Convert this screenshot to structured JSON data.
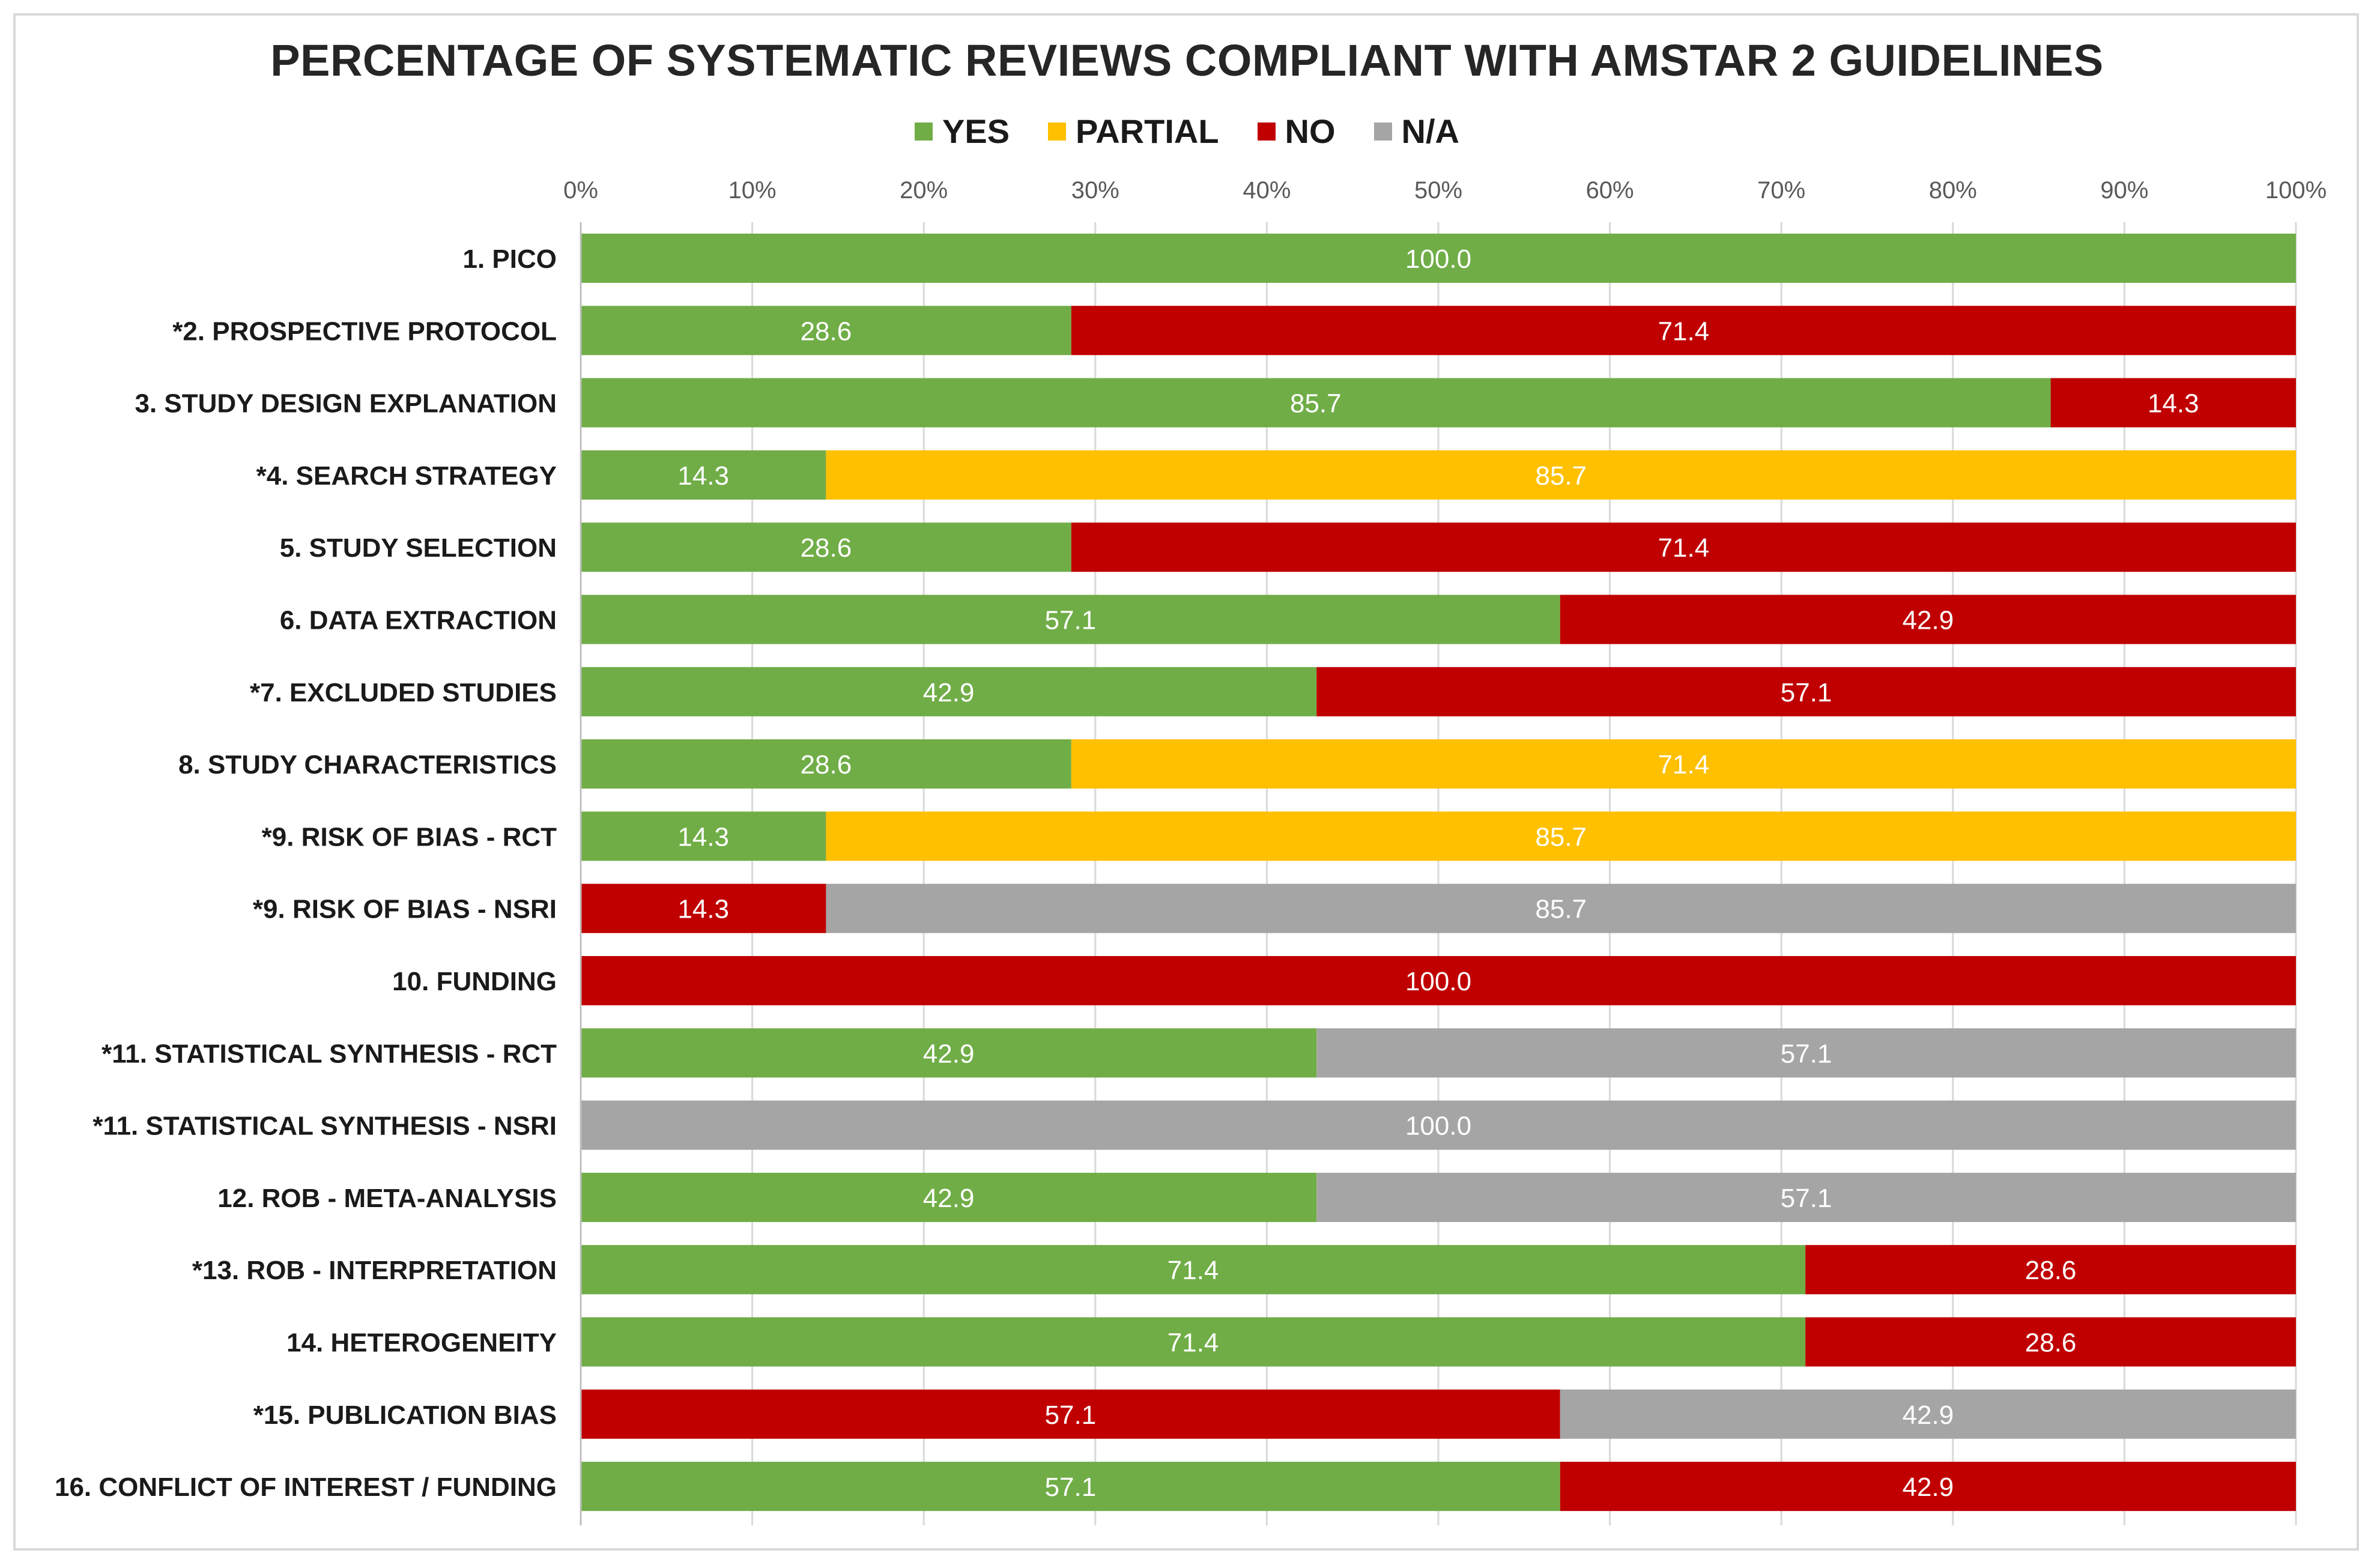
{
  "chart_data": {
    "type": "bar",
    "orientation": "horizontal",
    "stacked": true,
    "percent_stacked": true,
    "title": "PERCENTAGE OF SYSTEMATIC REVIEWS COMPLIANT WITH AMSTAR 2 GUIDELINES",
    "legend_position": "top",
    "xlim": [
      0,
      100
    ],
    "x_ticks": [
      "0%",
      "10%",
      "20%",
      "30%",
      "40%",
      "50%",
      "60%",
      "70%",
      "80%",
      "90%",
      "100%"
    ],
    "categories": [
      "1. PICO",
      "*2. PROSPECTIVE PROTOCOL",
      "3. STUDY DESIGN EXPLANATION",
      "*4. SEARCH STRATEGY",
      "5. STUDY SELECTION",
      "6. DATA EXTRACTION",
      "*7. EXCLUDED STUDIES",
      "8. STUDY CHARACTERISTICS",
      "*9. RISK OF BIAS - RCT",
      "*9. RISK OF BIAS - NSRI",
      "10. FUNDING",
      "*11. STATISTICAL SYNTHESIS  - RCT",
      "*11. STATISTICAL SYNTHESIS - NSRI",
      "12. ROB - META-ANALYSIS",
      "*13. ROB - INTERPRETATION",
      "14. HETEROGENEITY",
      "*15. PUBLICATION BIAS",
      "16. CONFLICT OF INTEREST / FUNDING"
    ],
    "series": [
      {
        "name": "YES",
        "color": "#70ad47",
        "values": [
          100.0,
          28.6,
          85.7,
          14.3,
          28.6,
          57.1,
          42.9,
          28.6,
          14.3,
          0,
          0,
          42.9,
          0,
          42.9,
          71.4,
          71.4,
          0,
          57.1
        ]
      },
      {
        "name": "PARTIAL",
        "color": "#ffc000",
        "values": [
          0,
          0,
          0,
          85.7,
          0,
          0,
          0,
          71.4,
          85.7,
          0,
          0,
          0,
          0,
          0,
          0,
          0,
          0,
          0
        ]
      },
      {
        "name": "NO",
        "color": "#c00000",
        "values": [
          0,
          71.4,
          14.3,
          0,
          71.4,
          42.9,
          57.1,
          0,
          0,
          14.3,
          100.0,
          0,
          0,
          0,
          28.6,
          28.6,
          57.1,
          42.9
        ]
      },
      {
        "name": "N/A",
        "color": "#a5a5a5",
        "values": [
          0,
          0,
          0,
          0,
          0,
          0,
          0,
          0,
          0,
          85.7,
          0,
          57.1,
          100.0,
          57.1,
          0,
          0,
          42.9,
          0
        ]
      }
    ]
  }
}
